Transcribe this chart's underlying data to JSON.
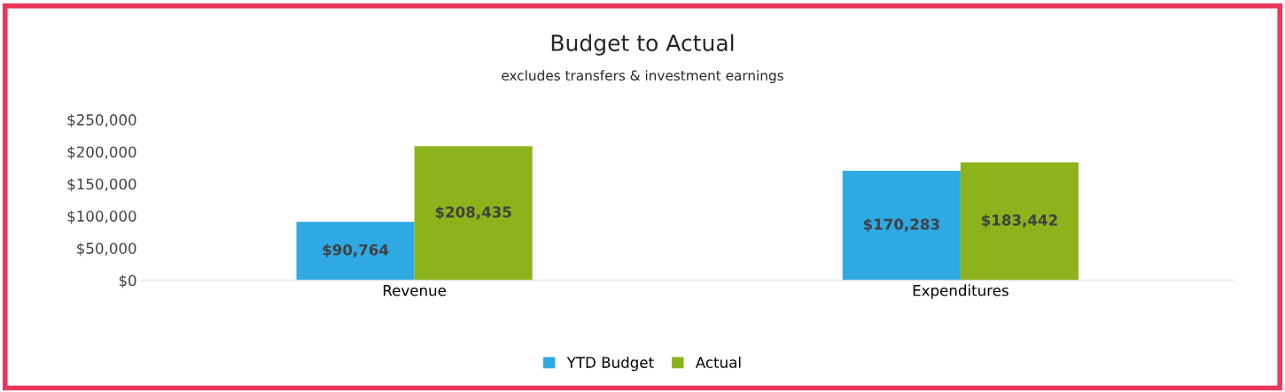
{
  "chart_data": {
    "type": "bar",
    "title": "Budget to Actual",
    "subtitle": "excludes transfers & investment earnings",
    "categories": [
      "Revenue",
      "Expenditures"
    ],
    "series": [
      {
        "name": "YTD Budget",
        "color": "#2ea9e3",
        "values": [
          90764,
          170283
        ],
        "value_labels": [
          "$90,764",
          "$170,283"
        ]
      },
      {
        "name": "Actual",
        "color": "#8db31c",
        "values": [
          208435,
          183442
        ],
        "value_labels": [
          "$208,435",
          "$183,442"
        ]
      }
    ],
    "ylim": [
      0,
      250000
    ],
    "yticks": [
      {
        "value": 0,
        "label": "$0"
      },
      {
        "value": 50000,
        "label": "$50,000"
      },
      {
        "value": 100000,
        "label": "$100,000"
      },
      {
        "value": 150000,
        "label": "$150,000"
      },
      {
        "value": 200000,
        "label": "$200,000"
      },
      {
        "value": 250000,
        "label": "$250,000"
      }
    ],
    "grid": false,
    "legend": "bottom"
  }
}
